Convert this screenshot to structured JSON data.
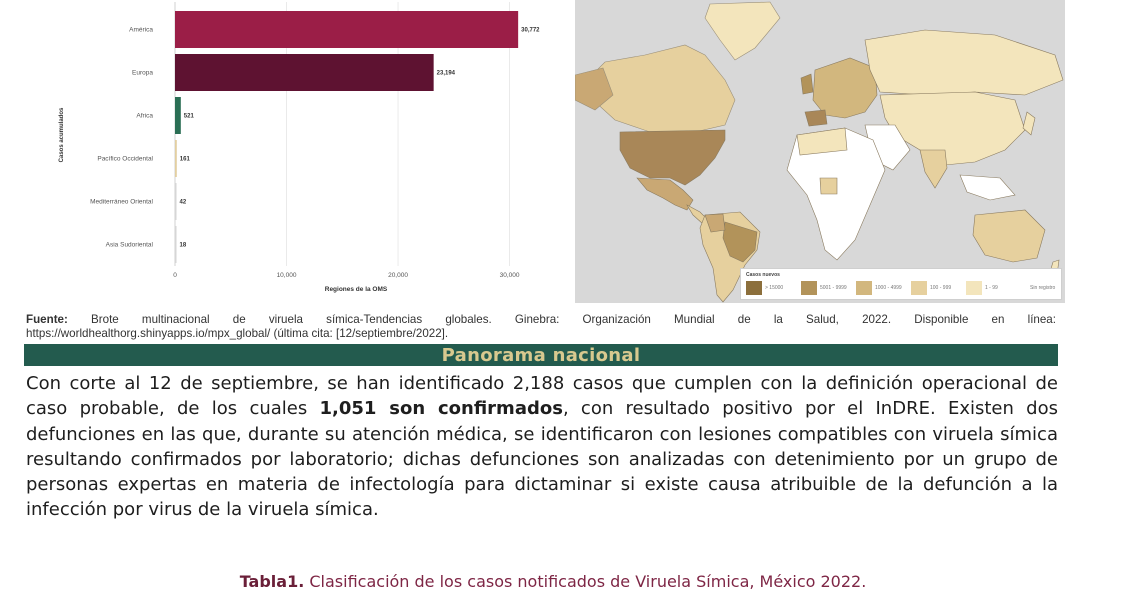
{
  "chart_data": {
    "type": "bar",
    "orientation": "horizontal",
    "categories": [
      "América",
      "Europa",
      "Africa",
      "Pacífico Occidental",
      "Mediterráneo Oriental",
      "Asia Sudoriental"
    ],
    "values": [
      30772,
      23194,
      521,
      161,
      42,
      18
    ],
    "value_labels": [
      "30,772",
      "23,194",
      "521",
      "161",
      "42",
      "18"
    ],
    "colors": [
      "#9b1e47",
      "#5e1231",
      "#2a6e54",
      "#e3cfa0",
      "#d6d6d6",
      "#d6d6d6"
    ],
    "xlabel": "Regiones de la OMS",
    "ylabel": "Casos acumulados",
    "x_ticks": [
      0,
      10000,
      20000,
      30000
    ],
    "x_tick_labels": [
      "0",
      "10,000",
      "20,000",
      "30,000"
    ],
    "xlim": [
      0,
      33000
    ],
    "grid": true
  },
  "map": {
    "ocean_color": "#d8d8d8",
    "legend": {
      "title": "Casos nuevos",
      "items": [
        {
          "label": "> 15000",
          "color": "#8c6f3c"
        },
        {
          "label": "5001 - 9999",
          "color": "#b2935a"
        },
        {
          "label": "1000 - 4999",
          "color": "#d2b77e"
        },
        {
          "label": "100 - 999",
          "color": "#e6d09e"
        },
        {
          "label": "1 - 99",
          "color": "#f3e5bc"
        },
        {
          "label": "Sin registro",
          "color": "#ffffff"
        }
      ]
    }
  },
  "source": {
    "label": "Fuente:",
    "text_line1": "Brote multinacional de viruela símica-Tendencias globales. Ginebra: Organización Mundial de la Salud, 2022. Disponible en línea:",
    "text_line2": "https://worldhealthorg.shinyapps.io/mpx_global/ (última cita: [12/septiembre/2022]."
  },
  "section": {
    "title": "Panorama nacional",
    "header_color": "#235b4e",
    "title_color": "#d8c98f"
  },
  "paragraph": {
    "part1": "Con corte al 12 de septiembre, se han identificado 2,188 casos que cumplen con la definición operacional de caso probable, de los cuales ",
    "bold": "1,051 son confirmados",
    "part2": ", con resultado positivo por el InDRE. Existen dos defunciones en las que, durante su atención médica, se identificaron con lesiones compatibles con viruela símica resultando confirmados por laboratorio; dichas defunciones son analizadas con detenimiento por un grupo de personas expertas en materia de infectología para dictaminar si existe causa atribuible de la defunción a la infección por virus de la viruela símica."
  },
  "caption": {
    "label": "Tabla1.",
    "text": " Clasificación de los casos notificados de Viruela Símica, México 2022."
  }
}
